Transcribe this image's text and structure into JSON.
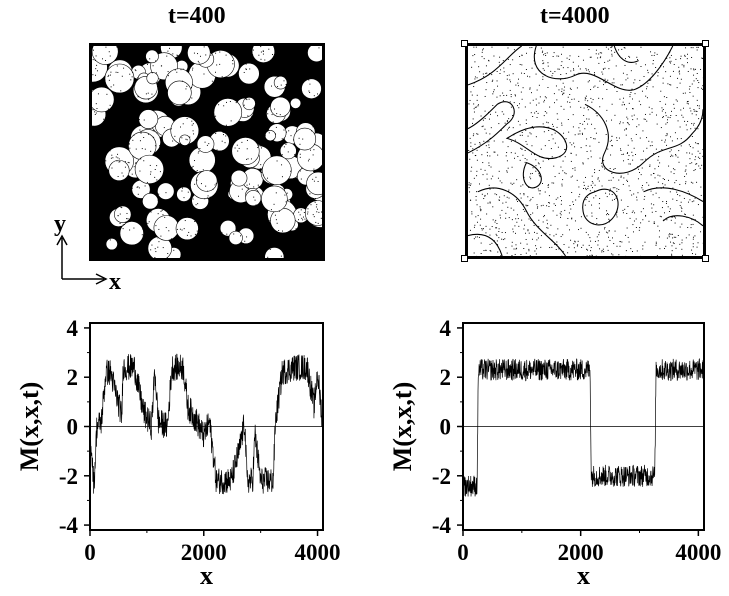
{
  "snapshots": [
    {
      "title": "t=400",
      "pattern": "droplets"
    },
    {
      "title": "t=4000",
      "pattern": "domains"
    }
  ],
  "axis_indicator": {
    "y_label": "y",
    "x_label": "x"
  },
  "chart_data": [
    {
      "type": "line",
      "title": "",
      "xlabel": "x",
      "ylabel": "M(x,x,t)",
      "xlim": [
        0,
        4096
      ],
      "ylim": [
        -4.2,
        4.2
      ],
      "xticks": [
        0,
        2000,
        4000
      ],
      "yticks": [
        -4,
        -2,
        0,
        2,
        4
      ],
      "zero_line": true,
      "grid": false,
      "series": [
        {
          "segments": [
            [
              0,
              0
            ],
            [
              70,
              -2.4
            ],
            [
              120,
              0
            ],
            [
              200,
              0.2
            ],
            [
              280,
              2.2
            ],
            [
              360,
              2.2
            ],
            [
              560,
              0.4
            ],
            [
              580,
              2.4
            ],
            [
              780,
              2.4
            ],
            [
              940,
              0.6
            ],
            [
              1080,
              0
            ],
            [
              1140,
              2.3
            ],
            [
              1200,
              0.2
            ],
            [
              1360,
              0
            ],
            [
              1440,
              2.4
            ],
            [
              1640,
              2.4
            ],
            [
              1720,
              0.8
            ],
            [
              1880,
              0.2
            ],
            [
              2000,
              -0.4
            ],
            [
              2100,
              0.2
            ],
            [
              2220,
              -2.2
            ],
            [
              2480,
              -2.2
            ],
            [
              2620,
              -1.0
            ],
            [
              2720,
              0.2
            ],
            [
              2760,
              -2.2
            ],
            [
              2860,
              -2.2
            ],
            [
              2900,
              -0.3
            ],
            [
              3000,
              -2.2
            ],
            [
              3220,
              -2.2
            ],
            [
              3260,
              0.2
            ],
            [
              3380,
              2.2
            ],
            [
              3600,
              2.4
            ],
            [
              3820,
              2.4
            ],
            [
              3940,
              0.8
            ],
            [
              4000,
              2.2
            ],
            [
              4096,
              0
            ]
          ],
          "noise": 0.55
        }
      ]
    },
    {
      "type": "line",
      "title": "",
      "xlabel": "x",
      "ylabel": "M(x,x,t)",
      "xlim": [
        0,
        4096
      ],
      "ylim": [
        -4.2,
        4.2
      ],
      "xticks": [
        0,
        2000,
        4000
      ],
      "yticks": [
        -4,
        -2,
        0,
        2,
        4
      ],
      "zero_line": true,
      "grid": false,
      "series": [
        {
          "segments": [
            [
              0,
              -2.4
            ],
            [
              240,
              -2.4
            ],
            [
              260,
              2.3
            ],
            [
              2160,
              2.3
            ],
            [
              2180,
              -2.0
            ],
            [
              3260,
              -2.0
            ],
            [
              3280,
              2.3
            ],
            [
              4096,
              2.3
            ]
          ],
          "noise": 0.45
        }
      ]
    }
  ]
}
